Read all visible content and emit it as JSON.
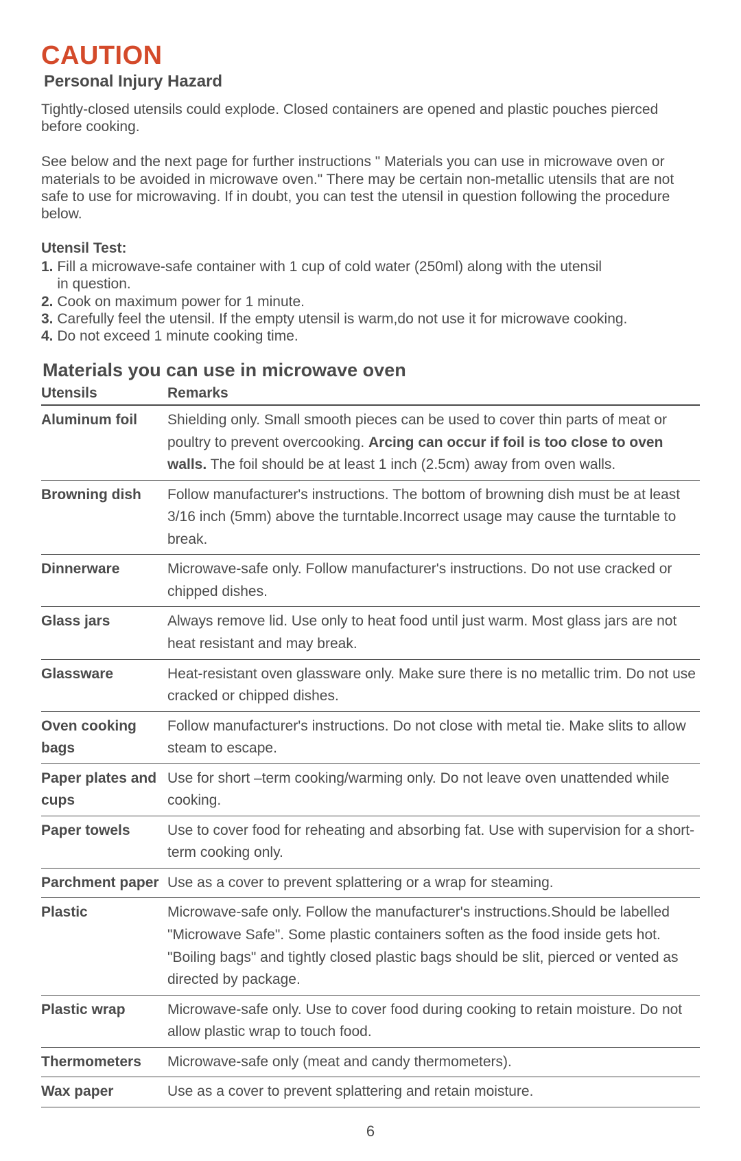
{
  "caution_title": "CAUTION",
  "subtitle": "Personal Injury Hazard",
  "para1": "Tightly-closed utensils could explode. Closed containers are opened and plastic pouches pierced before cooking.",
  "para2": "See below and the next page for further instructions \" Materials you can use in microwave oven or materials to be avoided in microwave oven.\" There may be certain non-metallic utensils that are not safe to use for microwaving. If in doubt, you can test the utensil in question following the procedure  below.",
  "utensil_test_heading": "Utensil Test:",
  "steps": {
    "n1": "1.",
    "t1a": " Fill a microwave-safe container with 1 cup of cold water (250ml) along with the utensil",
    "t1b": "    in question.",
    "n2": "2.",
    "t2": " Cook on maximum power for 1 minute.",
    "n3": "3.",
    "t3": " Carefully feel the utensil. If the empty utensil is warm,do not use it for  microwave cooking.",
    "n4": "4.",
    "t4": " Do not exceed 1 minute cooking time."
  },
  "section_title": "Materials you can use in microwave oven",
  "table": {
    "h1": "Utensils",
    "h2": "Remarks",
    "rows": [
      {
        "ut": "Aluminum foil",
        "r_pre": "Shielding only. Small smooth pieces can be used to cover thin parts  of meat or poultry to prevent overcooking. ",
        "r_bold": "Arcing can occur if foil is too close to oven walls.",
        "r_post": " The foil should be at least 1 inch (2.5cm) away from oven walls."
      },
      {
        "ut": "Browning dish",
        "r": "Follow manufacturer's instructions. The bottom of browning dish must be at least 3/16 inch (5mm) above the turntable.Incorrect usage may cause the turntable to break."
      },
      {
        "ut": "Dinnerware",
        "r": "Microwave-safe only. Follow manufacturer's instructions. Do not use cracked or chipped dishes."
      },
      {
        "ut": "Glass jars",
        "r": "Always remove lid. Use only to heat food until just warm. Most glass jars are not heat resistant and may break."
      },
      {
        "ut": "Glassware",
        "r": "Heat-resistant oven glassware only. Make sure there is no metallic trim. Do not  use cracked or chipped dishes."
      },
      {
        "ut": "Oven cooking bags",
        "r": "Follow manufacturer's instructions. Do not close with metal tie. Make slits to allow steam to escape."
      },
      {
        "ut": "Paper plates and cups",
        "r": "Use for short –term cooking/warming only. Do not leave oven unattended while cooking."
      },
      {
        "ut": "Paper towels",
        "r": "Use to cover food for reheating and absorbing fat. Use with supervision for a short-term cooking only."
      },
      {
        "ut": "Parchment paper",
        "r": "Use as a cover to prevent splattering or a wrap for steaming."
      },
      {
        "ut": "Plastic",
        "r": "Microwave-safe only. Follow the manufacturer's instructions.Should be labelled \"Microwave Safe\". Some plastic containers soften as the food inside gets hot. \"Boiling bags\" and tightly closed plastic bags should be slit, pierced or vented as directed by package."
      },
      {
        "ut": "Plastic wrap",
        "r": "Microwave-safe only. Use to cover food during cooking to retain moisture. Do not allow plastic wrap to touch food."
      },
      {
        "ut": "Thermometers",
        "r": "Microwave-safe only (meat and candy thermometers)."
      },
      {
        "ut": "Wax paper",
        "r": "Use as a cover to prevent splattering and retain moisture."
      }
    ]
  },
  "page_number": "6",
  "colors": {
    "caution": "#d44a2a",
    "text": "#4a4a4a",
    "bg": "#ffffff",
    "rule": "#4a4a4a"
  }
}
